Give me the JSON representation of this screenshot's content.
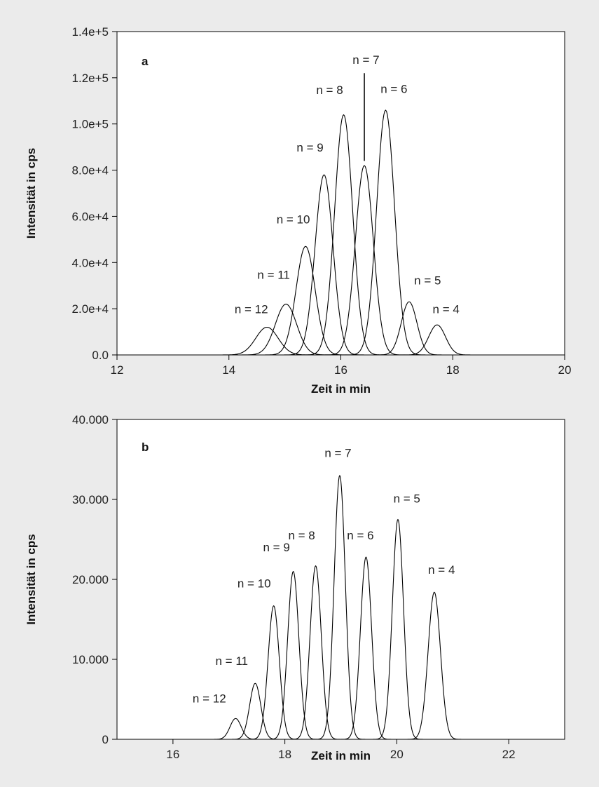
{
  "chart_data": [
    {
      "type": "line",
      "panel": "a",
      "xlabel": "Zeit in min",
      "ylabel": "Intensität in cps",
      "xlim": [
        12,
        20
      ],
      "ylim": [
        0,
        140000
      ],
      "x_ticks": [
        12,
        14,
        16,
        18,
        20
      ],
      "x_tick_labels": [
        "12",
        "14",
        "16",
        "18",
        "20"
      ],
      "y_ticks": [
        0,
        20000,
        40000,
        60000,
        80000,
        100000,
        120000,
        140000
      ],
      "y_tick_labels": [
        "0.0",
        "2.0e+4",
        "4.0e+4",
        "6.0e+4",
        "8.0e+4",
        "1.0e+5",
        "1.2e+5",
        "1.4e+5"
      ],
      "grid": false,
      "series": [
        {
          "name": "n = 12",
          "peak_x": 14.68,
          "peak_y": 12000,
          "width": 0.2
        },
        {
          "name": "n = 11",
          "peak_x": 15.02,
          "peak_y": 22000,
          "width": 0.19
        },
        {
          "name": "n = 10",
          "peak_x": 15.37,
          "peak_y": 47000,
          "width": 0.17
        },
        {
          "name": "n = 9",
          "peak_x": 15.7,
          "peak_y": 78000,
          "width": 0.16
        },
        {
          "name": "n = 8",
          "peak_x": 16.05,
          "peak_y": 104000,
          "width": 0.16
        },
        {
          "name": "n = 7",
          "peak_x": 16.42,
          "peak_y": 82000,
          "width": 0.16
        },
        {
          "name": "n = 6",
          "peak_x": 16.8,
          "peak_y": 106000,
          "width": 0.16
        },
        {
          "name": "n = 5",
          "peak_x": 17.22,
          "peak_y": 23000,
          "width": 0.14
        },
        {
          "name": "n = 4",
          "peak_x": 17.72,
          "peak_y": 13000,
          "width": 0.15
        }
      ],
      "labels": [
        {
          "text": "n = 12",
          "x": 14.4,
          "y": 18000
        },
        {
          "text": "n = 11",
          "x": 14.8,
          "y": 33000
        },
        {
          "text": "n = 10",
          "x": 15.15,
          "y": 57000
        },
        {
          "text": "n = 9",
          "x": 15.45,
          "y": 88000
        },
        {
          "text": "n = 8",
          "x": 15.8,
          "y": 113000
        },
        {
          "text": "n = 7",
          "x": 16.45,
          "y": 126000
        },
        {
          "text": "n = 6",
          "x": 16.95,
          "y": 113500
        },
        {
          "text": "n = 5",
          "x": 17.55,
          "y": 30500
        },
        {
          "text": "n = 4",
          "x": 17.88,
          "y": 18000
        }
      ],
      "marker": {
        "x": 16.42,
        "y_from": 84000,
        "y_to": 122000
      }
    },
    {
      "type": "line",
      "panel": "b",
      "xlabel": "Zeit in min",
      "ylabel": "Intensität in cps",
      "xlim": [
        15,
        23
      ],
      "ylim": [
        0,
        40000
      ],
      "x_ticks": [
        16,
        18,
        20,
        22
      ],
      "x_tick_labels": [
        "16",
        "18",
        "20",
        "22"
      ],
      "y_ticks": [
        0,
        10000,
        20000,
        30000,
        40000
      ],
      "y_tick_labels": [
        "0",
        "10.000",
        "20.000",
        "30.000",
        "40.000"
      ],
      "grid": false,
      "series": [
        {
          "name": "n = 12",
          "peak_x": 17.12,
          "peak_y": 2600,
          "width": 0.1
        },
        {
          "name": "n = 11",
          "peak_x": 17.47,
          "peak_y": 7000,
          "width": 0.1
        },
        {
          "name": "n = 10",
          "peak_x": 17.8,
          "peak_y": 16700,
          "width": 0.1
        },
        {
          "name": "n = 9",
          "peak_x": 18.15,
          "peak_y": 21000,
          "width": 0.1
        },
        {
          "name": "n = 8",
          "peak_x": 18.55,
          "peak_y": 21700,
          "width": 0.1
        },
        {
          "name": "n = 7",
          "peak_x": 18.98,
          "peak_y": 33000,
          "width": 0.1
        },
        {
          "name": "n = 6",
          "peak_x": 19.45,
          "peak_y": 22800,
          "width": 0.1
        },
        {
          "name": "n = 5",
          "peak_x": 20.02,
          "peak_y": 27500,
          "width": 0.1
        },
        {
          "name": "n = 4",
          "peak_x": 20.67,
          "peak_y": 18400,
          "width": 0.11
        }
      ],
      "labels": [
        {
          "text": "n = 12",
          "x": 16.65,
          "y": 4600
        },
        {
          "text": "n = 11",
          "x": 17.05,
          "y": 9300
        },
        {
          "text": "n = 10",
          "x": 17.45,
          "y": 19000
        },
        {
          "text": "n = 9",
          "x": 17.85,
          "y": 23500
        },
        {
          "text": "n = 8",
          "x": 18.3,
          "y": 25000
        },
        {
          "text": "n = 7",
          "x": 18.95,
          "y": 35300
        },
        {
          "text": "n = 6",
          "x": 19.35,
          "y": 25000
        },
        {
          "text": "n = 5",
          "x": 20.18,
          "y": 29600
        },
        {
          "text": "n = 4",
          "x": 20.8,
          "y": 20700
        }
      ]
    }
  ]
}
